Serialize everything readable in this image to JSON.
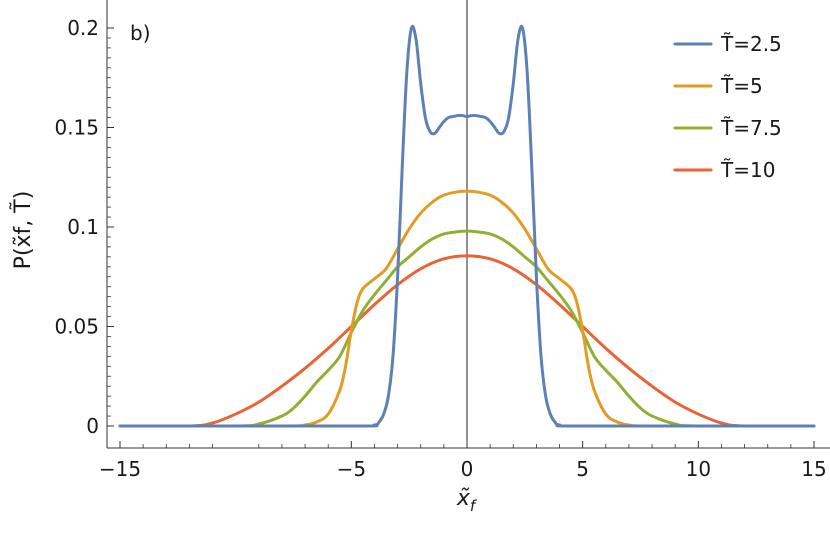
{
  "chart_data": {
    "type": "line",
    "panel_label": "b)",
    "xlabel": "x̃",
    "xlabel_sub": "f",
    "ylabel": "P(x̃f, T̃)",
    "xlim": [
      -15,
      15
    ],
    "ylim": [
      0,
      0.2
    ],
    "x_ticks": [
      {
        "value": -15,
        "label": "−15"
      },
      {
        "value": -5,
        "label": "−5"
      },
      {
        "value": 0,
        "label": "0"
      },
      {
        "value": 5,
        "label": "5"
      },
      {
        "value": 10,
        "label": "10"
      },
      {
        "value": 15,
        "label": "15"
      }
    ],
    "y_ticks": [
      {
        "value": 0,
        "label": "0"
      },
      {
        "value": 0.05,
        "label": "0.05"
      },
      {
        "value": 0.1,
        "label": "0.1"
      },
      {
        "value": 0.15,
        "label": "0.15"
      },
      {
        "value": 0.2,
        "label": "0.2"
      }
    ],
    "legend_position": "top-right",
    "grid": false,
    "series": [
      {
        "name": "T̃=2.5",
        "color": "#5E81B5",
        "x": [
          -15,
          -5,
          -4,
          -3.8,
          -3.6,
          -3.4,
          -3.2,
          -3,
          -2.8,
          -2.6,
          -2.4,
          -2.2,
          -2,
          -1.8,
          -1.6,
          -1.4,
          -1.2,
          -1,
          -0.8,
          -0.6,
          -0.4,
          -0.2,
          0,
          0.2,
          0.4,
          0.6,
          0.8,
          1,
          1.2,
          1.4,
          1.6,
          1.8,
          2,
          2.2,
          2.4,
          2.6,
          2.8,
          3,
          3.2,
          3.4,
          3.6,
          3.8,
          4,
          5,
          15
        ],
        "y": [
          0,
          0,
          0.0005,
          0.002,
          0.006,
          0.015,
          0.035,
          0.075,
          0.13,
          0.178,
          0.2,
          0.194,
          0.172,
          0.155,
          0.148,
          0.147,
          0.15,
          0.153,
          0.155,
          0.1555,
          0.156,
          0.156,
          0.1555,
          0.156,
          0.156,
          0.1555,
          0.155,
          0.153,
          0.15,
          0.147,
          0.148,
          0.155,
          0.172,
          0.194,
          0.2,
          0.178,
          0.13,
          0.075,
          0.035,
          0.015,
          0.006,
          0.002,
          0.0005,
          0,
          0
        ]
      },
      {
        "name": "T̃=5",
        "color": "#E19C24",
        "x": [
          -15,
          -8,
          -7,
          -6.5,
          -6,
          -5.5,
          -5.25,
          -5,
          -4.75,
          -4.5,
          -4,
          -3.5,
          -3,
          -2.5,
          -2,
          -1.5,
          -1,
          -0.5,
          0,
          0.5,
          1,
          1.5,
          2,
          2.5,
          3,
          3.5,
          4,
          4.5,
          4.75,
          5,
          5.25,
          5.5,
          6,
          6.5,
          7,
          8,
          15
        ],
        "y": [
          0,
          0,
          0.0005,
          0.002,
          0.006,
          0.018,
          0.03,
          0.048,
          0.062,
          0.069,
          0.074,
          0.079,
          0.089,
          0.099,
          0.107,
          0.1125,
          0.116,
          0.1175,
          0.118,
          0.1175,
          0.116,
          0.1125,
          0.107,
          0.099,
          0.089,
          0.079,
          0.074,
          0.069,
          0.062,
          0.048,
          0.03,
          0.018,
          0.006,
          0.002,
          0.0005,
          0,
          0
        ]
      },
      {
        "name": "T̃=7.5",
        "color": "#8FB032",
        "x": [
          -15,
          -10,
          -9,
          -8,
          -7.5,
          -7,
          -6.5,
          -6,
          -5.5,
          -5,
          -4.5,
          -4,
          -3.5,
          -3,
          -2.5,
          -2,
          -1.5,
          -1,
          -0.5,
          0,
          0.5,
          1,
          1.5,
          2,
          2.5,
          3,
          3.5,
          4,
          4.5,
          5,
          5.5,
          6,
          6.5,
          7,
          7.5,
          8,
          9,
          10,
          15
        ],
        "y": [
          0,
          0,
          0.001,
          0.005,
          0.009,
          0.015,
          0.022,
          0.028,
          0.035,
          0.047,
          0.058,
          0.066,
          0.073,
          0.08,
          0.085,
          0.09,
          0.094,
          0.0965,
          0.0975,
          0.098,
          0.0975,
          0.0965,
          0.094,
          0.09,
          0.085,
          0.08,
          0.073,
          0.066,
          0.058,
          0.047,
          0.035,
          0.028,
          0.022,
          0.015,
          0.009,
          0.005,
          0.001,
          0,
          0
        ]
      },
      {
        "name": "T̃=10",
        "color": "#EB6235",
        "x": [
          -15,
          -12,
          -11,
          -10,
          -9,
          -8,
          -7,
          -6,
          -5,
          -4,
          -3,
          -2,
          -1,
          0,
          1,
          2,
          3,
          4,
          5,
          6,
          7,
          8,
          9,
          10,
          11,
          12,
          15
        ],
        "y": [
          0,
          0,
          0.0015,
          0.006,
          0.012,
          0.02,
          0.029,
          0.039,
          0.05,
          0.061,
          0.071,
          0.079,
          0.084,
          0.0855,
          0.084,
          0.079,
          0.071,
          0.061,
          0.05,
          0.039,
          0.029,
          0.02,
          0.012,
          0.006,
          0.0015,
          0,
          0
        ]
      }
    ]
  }
}
